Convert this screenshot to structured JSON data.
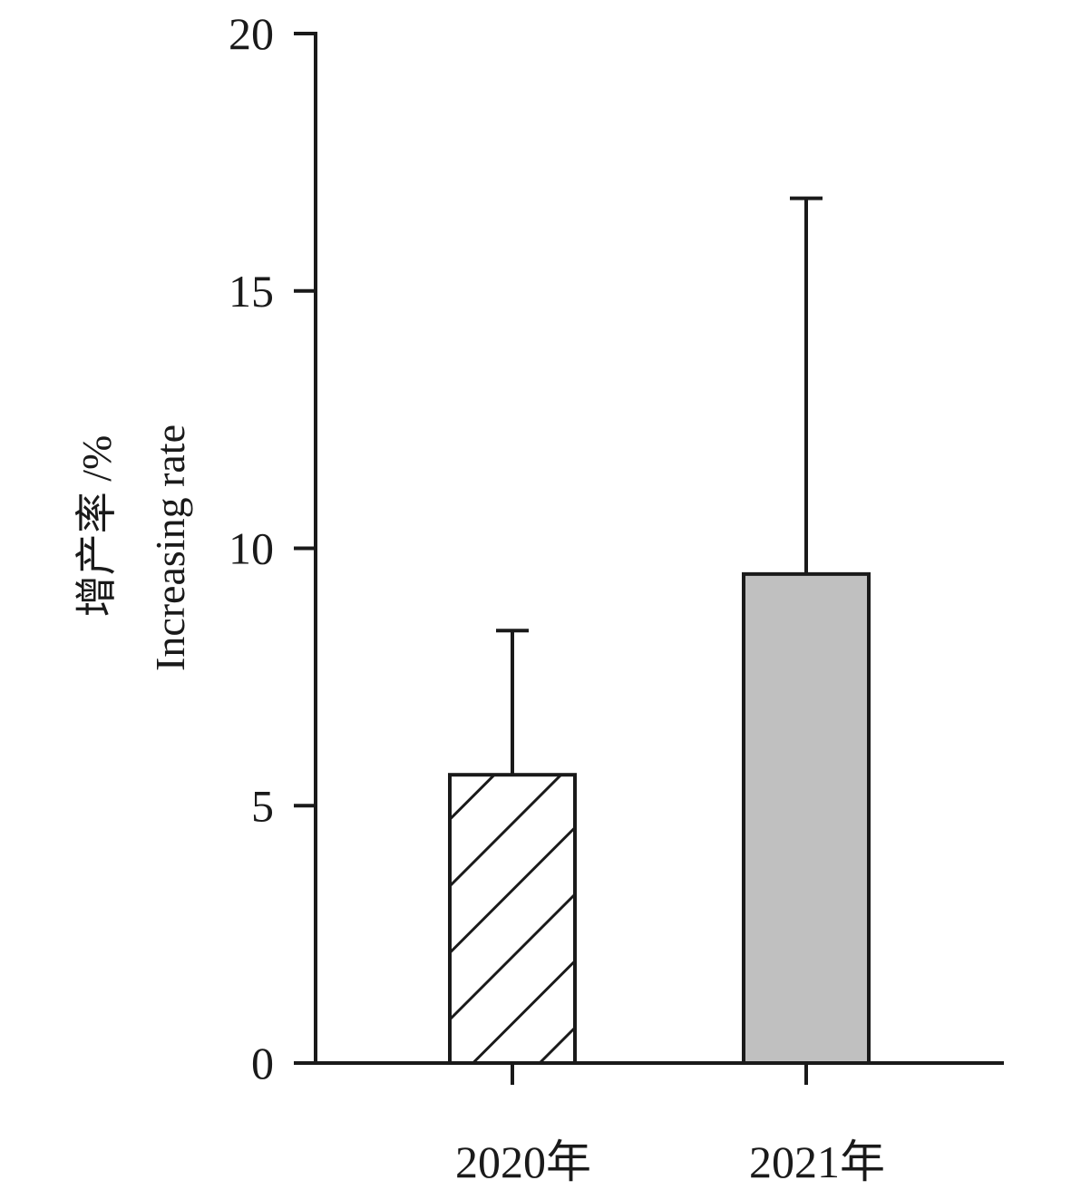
{
  "chart_data": {
    "type": "bar",
    "categories": [
      "2020年",
      "2021年"
    ],
    "values": [
      5.6,
      9.5
    ],
    "error_upper": [
      8.4,
      16.8
    ],
    "ylabel": "增产率 /%",
    "ylabel_en": "Increasing rate",
    "ylim": [
      0,
      20
    ],
    "yticks": [
      0,
      5,
      10,
      15,
      20
    ],
    "ytick_labels": [
      "0",
      "5",
      "10",
      "15",
      "20"
    ],
    "grid": false,
    "legend": "none",
    "bar_styles": [
      "hatched",
      "solid"
    ],
    "colors": {
      "axis": "#1a1a1a",
      "bar_2020_fill": "#ffffff",
      "bar_2021_fill": "#c0c0c0",
      "bar_edge": "#1a1a1a"
    }
  }
}
